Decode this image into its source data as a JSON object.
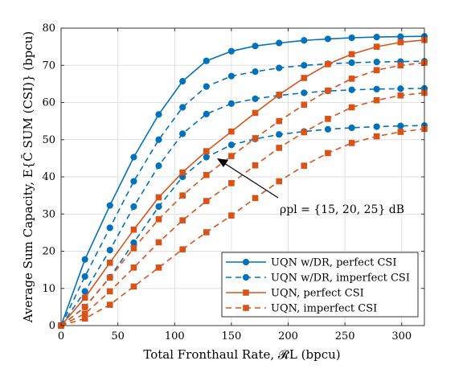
{
  "chart_data": {
    "type": "line",
    "xlabel": "Total Fronthaul Rate, 𝓡L (bpcu)",
    "ylabel": "Average Sum Capacity, E{C̄ SUM (CSI)} (bpcu)",
    "xlim": [
      0,
      320
    ],
    "ylim": [
      0,
      80
    ],
    "xticks": [
      0,
      50,
      100,
      150,
      200,
      250,
      300
    ],
    "yticks": [
      0,
      10,
      20,
      30,
      40,
      50,
      60,
      70,
      80
    ],
    "grid": true,
    "legend_position": "bottom-right",
    "annotation": "ρpl = {15, 20, 25} dB",
    "series": [
      {
        "name": "UQN w/DR, perfect CSI",
        "color": "#0072BD",
        "dash": "solid",
        "marker": "circle",
        "groups": [
          {
            "x": [
              0,
              21,
              43,
              64,
              86,
              107,
              128,
              150,
              171,
              192,
              214,
              235,
              256,
              278,
              299,
              320
            ],
            "y": [
              0,
              17.8,
              32.3,
              45.3,
              56.8,
              65.7,
              71.2,
              73.8,
              75.2,
              76.0,
              76.7,
              77.1,
              77.4,
              77.6,
              77.7,
              77.8
            ]
          }
        ]
      },
      {
        "name": "UQN w/DR, imperfect CSI",
        "color": "#0072BD",
        "dash": "dashed",
        "marker": "circle",
        "groups": [
          {
            "x": [
              0,
              21,
              43,
              64,
              86,
              107,
              128,
              150,
              171,
              192,
              214,
              235,
              256,
              278,
              299,
              320
            ],
            "y": [
              0,
              13.2,
              26.3,
              38.8,
              50.0,
              58.7,
              64.3,
              67.1,
              68.3,
              69.3,
              70.0,
              70.4,
              70.7,
              70.9,
              71.0,
              71.1
            ]
          },
          {
            "x": [
              0,
              21,
              43,
              64,
              86,
              107,
              128,
              150,
              171,
              192,
              214,
              235,
              256,
              278,
              299,
              320
            ],
            "y": [
              0,
              9.2,
              20.3,
              32.0,
              43.0,
              51.6,
              56.9,
              59.7,
              61.0,
              61.9,
              62.6,
              63.1,
              63.4,
              63.6,
              63.7,
              63.8
            ]
          },
          {
            "x": [
              0,
              21,
              43,
              64,
              86,
              107,
              128,
              150,
              171,
              192,
              214,
              235,
              256,
              278,
              299,
              320
            ],
            "y": [
              0,
              5.0,
              13.0,
              22.3,
              32.0,
              40.0,
              45.3,
              48.6,
              50.2,
              51.4,
              52.2,
              52.8,
              53.2,
              53.5,
              53.7,
              53.8
            ]
          }
        ]
      },
      {
        "name": "UQN, perfect CSI",
        "color": "#D95319",
        "dash": "solid",
        "marker": "square",
        "groups": [
          {
            "x": [
              0,
              21,
              43,
              64,
              86,
              107,
              128,
              150,
              171,
              192,
              214,
              235,
              256,
              278,
              299,
              320
            ],
            "y": [
              0,
              7.5,
              16.9,
              25.8,
              34.5,
              41.2,
              46.9,
              52.2,
              57.2,
              62.1,
              66.6,
              70.3,
              73.0,
              75.0,
              76.2,
              76.8
            ]
          }
        ]
      },
      {
        "name": "UQN, imperfect CSI",
        "color": "#D95319",
        "dash": "dashed",
        "marker": "square",
        "groups": [
          {
            "x": [
              0,
              21,
              43,
              64,
              86,
              107,
              128,
              150,
              171,
              192,
              214,
              235,
              256,
              278,
              299,
              320
            ],
            "y": [
              0,
              5.0,
              12.9,
              20.8,
              28.6,
              35.0,
              40.5,
              45.6,
              50.4,
              55.0,
              59.4,
              63.2,
              66.4,
              68.7,
              70.0,
              70.7
            ]
          },
          {
            "x": [
              0,
              21,
              43,
              64,
              86,
              107,
              128,
              150,
              171,
              192,
              214,
              235,
              256,
              278,
              299,
              320
            ],
            "y": [
              0,
              3.2,
              9.2,
              15.6,
              22.4,
              28.3,
              33.5,
              38.3,
              43.1,
              47.8,
              52.0,
              55.6,
              58.7,
              60.6,
              61.9,
              62.6
            ]
          },
          {
            "x": [
              0,
              21,
              43,
              64,
              86,
              107,
              128,
              150,
              171,
              192,
              214,
              235,
              256,
              278,
              299,
              320
            ],
            "y": [
              0,
              1.9,
              5.6,
              10.5,
              15.6,
              20.5,
              25.1,
              29.6,
              34.3,
              38.8,
              43.0,
              46.4,
              49.1,
              50.9,
              52.1,
              52.9
            ]
          }
        ]
      }
    ]
  }
}
